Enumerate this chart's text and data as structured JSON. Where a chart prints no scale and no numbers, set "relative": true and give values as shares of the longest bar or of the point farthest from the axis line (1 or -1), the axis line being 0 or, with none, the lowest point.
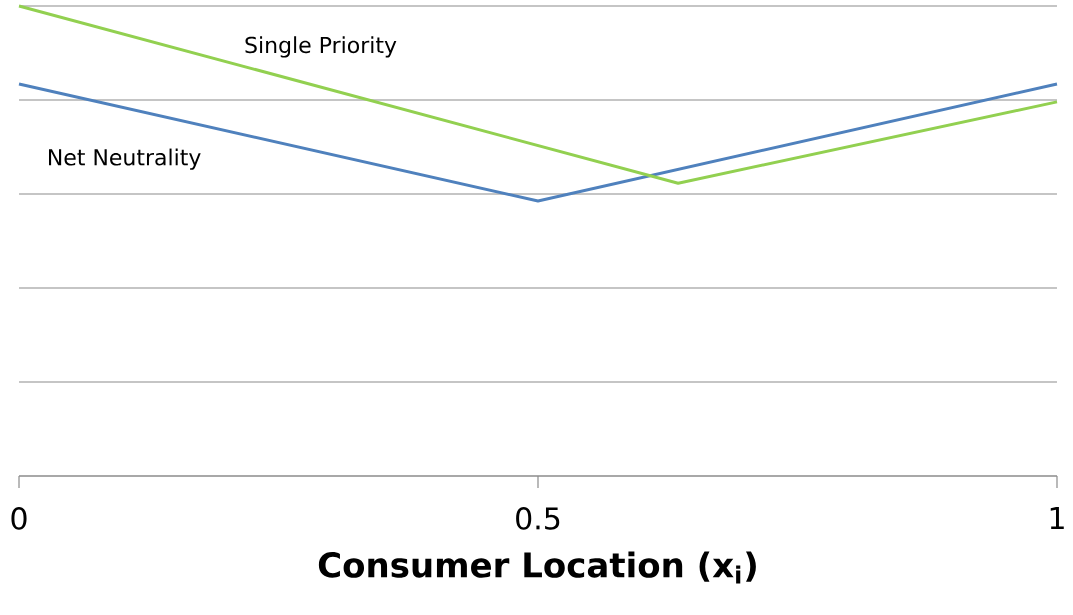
{
  "chart_data": {
    "type": "line",
    "xlabel": "**Consumer Location (x$_{i}$)**",
    "relative": true,
    "xlim": [
      0,
      1
    ],
    "xticks": [
      0,
      0.5,
      1
    ],
    "grid": "y",
    "legend": false,
    "series": [
      {
        "name": "Net Neutrality",
        "color": "#4f81bd",
        "x": [
          0,
          0.5,
          1
        ],
        "values": [
          0.834,
          0.585,
          0.834
        ]
      },
      {
        "name": "Single Priority",
        "color": "#92d050",
        "x": [
          0,
          0.635,
          1
        ],
        "values": [
          1,
          0.623,
          0.796
        ]
      }
    ]
  }
}
